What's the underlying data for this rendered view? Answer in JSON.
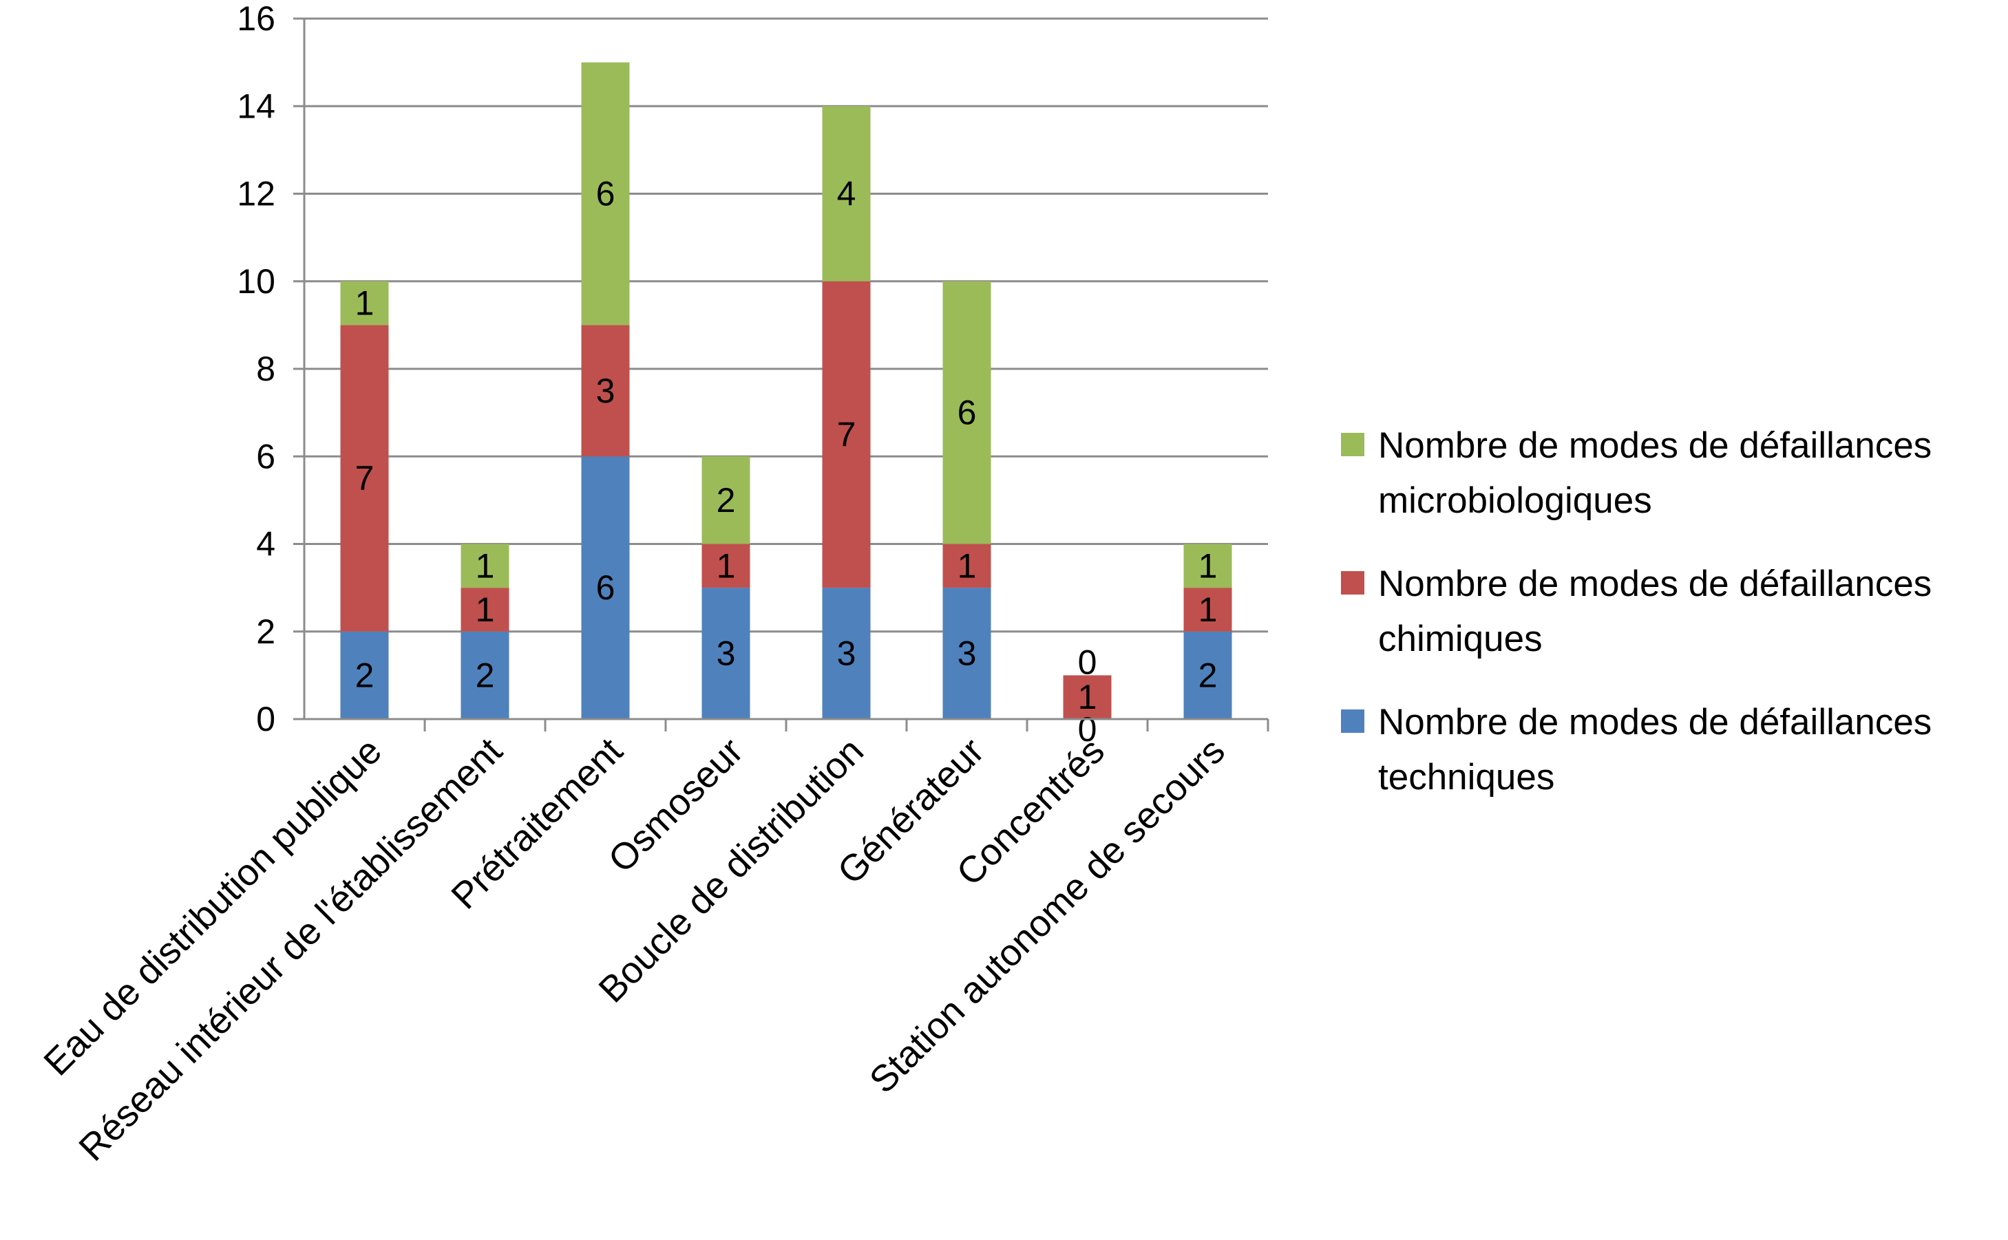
{
  "chart_data": {
    "type": "bar",
    "stacked": true,
    "categories": [
      "Eau de distribution publique",
      "Réseau intérieur de l'établissement",
      "Prétraitement",
      "Osmoseur",
      "Boucle de distribution",
      "Générateur",
      "Concentrés",
      "Station autonome de secours"
    ],
    "series": [
      {
        "name": "Nombre de modes de défaillances techniques",
        "color": "#4F81BD",
        "values": [
          2,
          2,
          6,
          3,
          3,
          3,
          0,
          2
        ]
      },
      {
        "name": "Nombre de modes de défaillances chimiques",
        "color": "#C0504D",
        "values": [
          7,
          1,
          3,
          1,
          7,
          1,
          1,
          1
        ]
      },
      {
        "name": "Nombre de modes de défaillances microbiologiques",
        "color": "#9BBB59",
        "values": [
          1,
          1,
          6,
          2,
          4,
          6,
          0,
          1
        ]
      }
    ],
    "legend_items": [
      {
        "series_index": 2,
        "lines": [
          "Nombre de modes de défaillances",
          "microbiologiques"
        ]
      },
      {
        "series_index": 1,
        "lines": [
          "Nombre de modes de défaillances",
          "chimiques"
        ]
      },
      {
        "series_index": 0,
        "lines": [
          "Nombre de modes de défaillances",
          "techniques"
        ]
      }
    ],
    "ylim": [
      0,
      16
    ],
    "yticks": [
      0,
      2,
      4,
      6,
      8,
      10,
      12,
      14,
      16
    ],
    "grid": true,
    "legend_position": "right",
    "title": "",
    "xlabel": "",
    "ylabel": ""
  }
}
